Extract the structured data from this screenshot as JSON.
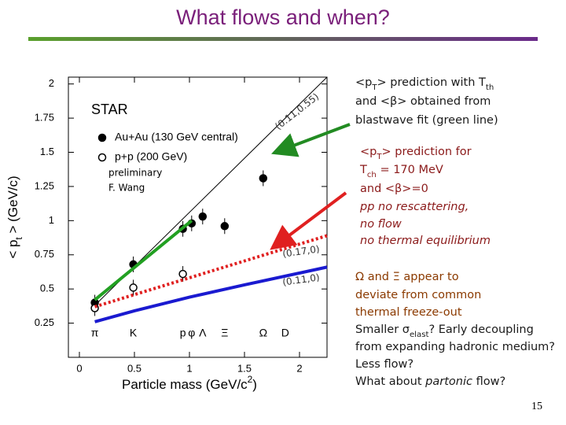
{
  "slide": {
    "title": "What flows and when?",
    "page": "15",
    "notes": [
      {
        "color": "#1a1a1a",
        "x": 452,
        "y": 105,
        "segments": [
          {
            "text": "<p"
          },
          {
            "text": "T",
            "sub": true
          },
          {
            "text": "> prediction with T"
          },
          {
            "text": "th",
            "sub": true
          }
        ]
      },
      {
        "color": "#1a1a1a",
        "x": 452,
        "y": 129,
        "segments": [
          {
            "text": "and <β> obtained from"
          }
        ]
      },
      {
        "color": "#1a1a1a",
        "x": 452,
        "y": 153,
        "segments": [
          {
            "text": "blastwave fit (green line)"
          }
        ]
      },
      {
        "color": "#8b1a1a",
        "x": 458,
        "y": 193,
        "segments": [
          {
            "text": "<p"
          },
          {
            "text": "T",
            "sub": true
          },
          {
            "text": "> prediction for"
          }
        ]
      },
      {
        "color": "#8b1a1a",
        "x": 458,
        "y": 216,
        "segments": [
          {
            "text": "T"
          },
          {
            "text": "ch",
            "sub": true
          },
          {
            "text": " = 170 MeV"
          }
        ]
      },
      {
        "color": "#8b1a1a",
        "x": 458,
        "y": 240,
        "segments": [
          {
            "text": "and <β>=0"
          }
        ]
      },
      {
        "color": "#8b1a1a",
        "x": 458,
        "y": 263,
        "segments": [
          {
            "text": "pp no rescattering,",
            "italic": true
          }
        ]
      },
      {
        "color": "#8b1a1a",
        "x": 458,
        "y": 285,
        "segments": [
          {
            "text": "no flow",
            "italic": true
          }
        ]
      },
      {
        "color": "#8b1a1a",
        "x": 458,
        "y": 306,
        "segments": [
          {
            "text": "no thermal equilibrium",
            "italic": true
          }
        ]
      },
      {
        "color": "#8b3a00",
        "x": 452,
        "y": 352,
        "segments": [
          {
            "text": "Ω and Ξ appear to"
          }
        ]
      },
      {
        "color": "#8b3a00",
        "x": 452,
        "y": 375,
        "segments": [
          {
            "text": "deviate from common"
          }
        ]
      },
      {
        "color": "#8b3a00",
        "x": 452,
        "y": 397,
        "segments": [
          {
            "text": "thermal freeze-out"
          }
        ]
      },
      {
        "color": "#1a1a1a",
        "x": 452,
        "y": 419,
        "segments": [
          {
            "text": "Smaller σ"
          },
          {
            "text": "elast",
            "sub": true
          },
          {
            "text": "? Early decoupling"
          }
        ]
      },
      {
        "color": "#1a1a1a",
        "x": 452,
        "y": 441,
        "segments": [
          {
            "text": "from expanding hadronic medium?"
          }
        ]
      },
      {
        "color": "#1a1a1a",
        "x": 452,
        "y": 463,
        "segments": [
          {
            "text": "Less flow?"
          }
        ]
      },
      {
        "color": "#1a1a1a",
        "x": 452,
        "y": 485,
        "segments": [
          {
            "text": "What about "
          },
          {
            "text": "partonic",
            "italic": true
          },
          {
            "text": " flow?"
          }
        ]
      }
    ]
  },
  "chart_data": {
    "type": "scatter",
    "x_label": [
      {
        "text": "Particle mass (GeV/c"
      },
      {
        "text": "2",
        "sup": true
      },
      {
        "text": ")"
      }
    ],
    "y_label": [
      {
        "text": "< p"
      },
      {
        "text": "t",
        "sub": true
      },
      {
        "text": " > (GeV/c)"
      }
    ],
    "experiment": "STAR",
    "note": [
      "preliminary",
      "F. Wang"
    ],
    "xlim": [
      -0.1,
      2.25
    ],
    "ylim": [
      0,
      2.05
    ],
    "xticks": [
      0,
      0.5,
      1,
      1.5,
      2
    ],
    "yticks": [
      0.25,
      0.5,
      0.75,
      1,
      1.25,
      1.5,
      1.75,
      2
    ],
    "particles": [
      {
        "label": "π",
        "x": 0.14
      },
      {
        "label": "K",
        "x": 0.49
      },
      {
        "label": "p",
        "x": 0.94
      },
      {
        "label": "φ",
        "x": 1.02
      },
      {
        "label": "Λ",
        "x": 1.12
      },
      {
        "label": "Ξ",
        "x": 1.32
      },
      {
        "label": "Ω",
        "x": 1.67
      },
      {
        "label": "D",
        "x": 1.87
      }
    ],
    "series": [
      {
        "name": "Au+Au (130 GeV central)",
        "marker": "filled",
        "color": "#000000",
        "x": [
          0.14,
          0.49,
          0.94,
          1.02,
          1.12,
          1.32,
          1.67
        ],
        "values": [
          0.4,
          0.68,
          0.94,
          0.98,
          1.03,
          0.96,
          1.31
        ]
      },
      {
        "name": "p+p (200 GeV)",
        "marker": "open",
        "color": "#000000",
        "x": [
          0.14,
          0.49,
          0.94
        ],
        "values": [
          0.36,
          0.51,
          0.61
        ]
      },
      {
        "label": "(0.11,0.55)",
        "line": "thin",
        "color": "#000000",
        "x": [
          0.14,
          2.25
        ],
        "values": [
          0.38,
          2.05
        ]
      },
      {
        "line": "thick",
        "color": "#22a022",
        "x": [
          0.14,
          1.02
        ],
        "values": [
          0.42,
          1.0
        ]
      },
      {
        "label": "(0.17,0)",
        "line": "dotted",
        "color": "#e02020",
        "x": [
          0.14,
          2.25
        ],
        "values": [
          0.37,
          0.89
        ]
      },
      {
        "label": "(0.11,0)",
        "line": "thick",
        "color": "#1a1ad0",
        "x": [
          0.14,
          0.5,
          1,
          1.5,
          2.25
        ],
        "values": [
          0.26,
          0.34,
          0.44,
          0.53,
          0.66
        ]
      }
    ]
  }
}
